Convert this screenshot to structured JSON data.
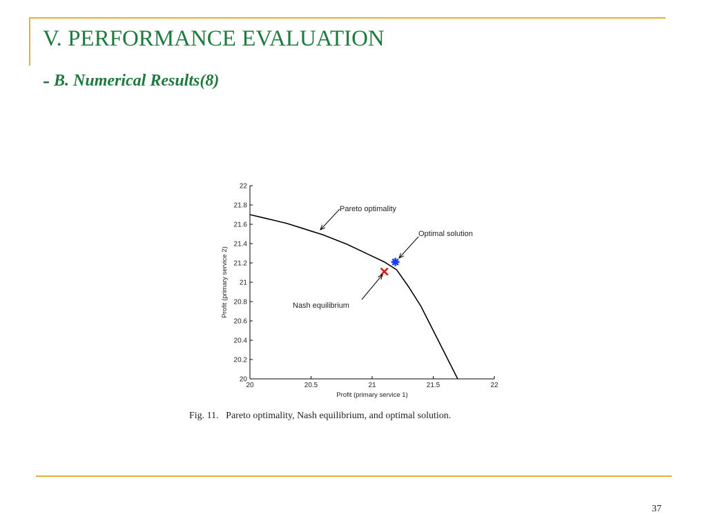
{
  "slide": {
    "title": "V. PERFORMANCE EVALUATION",
    "subtitle_dash": "-",
    "subtitle": "B. Numerical Results(8)",
    "page_number": "37",
    "caption": "Fig. 11.   Pareto optimality, Nash equilibrium, and optimal solution.",
    "accent_color": "#e2b13c",
    "title_color": "#1e7a3e"
  },
  "chart_data": {
    "type": "line",
    "xlabel": "Profit (primary service 1)",
    "ylabel": "Profit (primary service 2)",
    "xlim": [
      20,
      22
    ],
    "ylim": [
      20,
      22
    ],
    "x_ticks": [
      "20",
      "20.5",
      "21",
      "21.5",
      "22"
    ],
    "y_ticks": [
      "20",
      "20.2",
      "20.4",
      "20.6",
      "20.8",
      "21",
      "21.2",
      "21.4",
      "21.6",
      "21.8",
      "22"
    ],
    "grid": false,
    "series": [
      {
        "x": [
          20.0,
          20.1,
          20.2,
          20.3,
          20.4,
          20.5,
          20.6,
          20.7,
          20.8,
          20.9,
          21.0,
          21.1,
          21.2,
          21.3,
          21.4,
          21.5,
          21.6,
          21.7
        ],
        "y": [
          21.7,
          21.67,
          21.64,
          21.61,
          21.57,
          21.53,
          21.49,
          21.44,
          21.39,
          21.33,
          21.27,
          21.21,
          21.13,
          20.95,
          20.75,
          20.5,
          20.25,
          20.0
        ],
        "color": "#000000"
      }
    ],
    "points": [
      {
        "name": "Optimal solution",
        "x": 21.19,
        "y": 21.21,
        "marker": "asterisk",
        "color": "#1a3cff"
      },
      {
        "name": "Nash equilibrium",
        "x": 21.1,
        "y": 21.11,
        "marker": "x",
        "color": "#e01818"
      }
    ],
    "annotations": [
      {
        "text": "Pareto optimality",
        "target": [
          20.58,
          21.55
        ]
      },
      {
        "text": "Optimal solution",
        "target": [
          21.19,
          21.21
        ]
      },
      {
        "text": "Nash equilibrium",
        "target": [
          21.1,
          21.11
        ]
      }
    ]
  }
}
